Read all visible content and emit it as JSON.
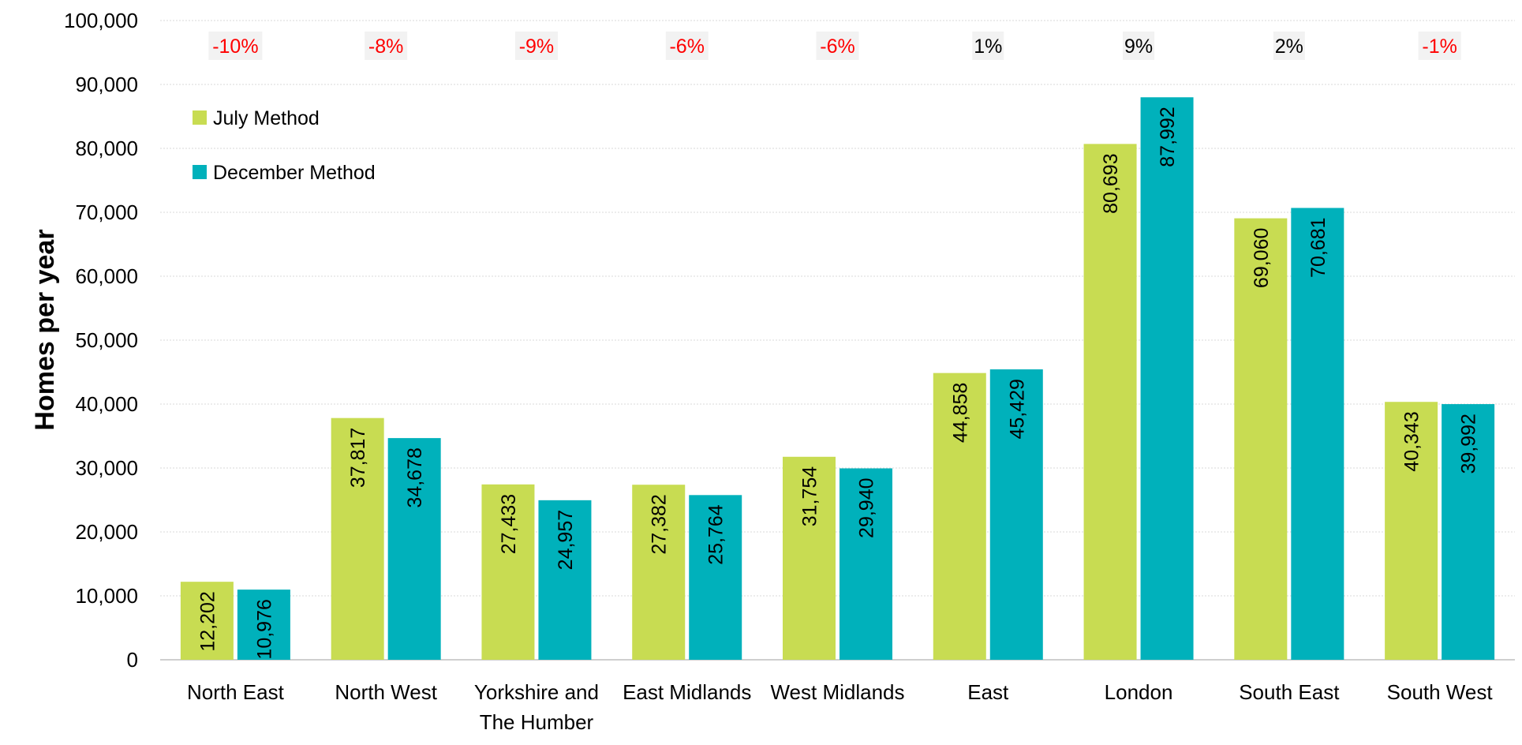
{
  "chart_data": {
    "type": "bar",
    "ylabel": "Homes per year",
    "xlabel": "",
    "ylim": [
      0,
      100000
    ],
    "yticks": [
      0,
      10000,
      20000,
      30000,
      40000,
      50000,
      60000,
      70000,
      80000,
      90000,
      100000
    ],
    "ytick_labels": [
      "0",
      "10,000",
      "20,000",
      "30,000",
      "40,000",
      "50,000",
      "60,000",
      "70,000",
      "80,000",
      "90,000",
      "100,000"
    ],
    "grid": true,
    "legend_position": "top-left",
    "categories": [
      [
        "North East"
      ],
      [
        "North West"
      ],
      [
        "Yorkshire and",
        "The Humber"
      ],
      [
        "East Midlands"
      ],
      [
        "West Midlands"
      ],
      [
        "East"
      ],
      [
        "London"
      ],
      [
        "South East"
      ],
      [
        "South West"
      ]
    ],
    "series": [
      {
        "name": "July Method",
        "color": "#c8dc52",
        "values": [
          12202,
          37817,
          27433,
          27382,
          31754,
          44858,
          80693,
          69060,
          40343
        ],
        "labels": [
          "12,202",
          "37,817",
          "27,433",
          "27,382",
          "31,754",
          "44,858",
          "80,693",
          "69,060",
          "40,343"
        ]
      },
      {
        "name": "December Method",
        "color": "#00b1bb",
        "values": [
          10976,
          34678,
          24957,
          25764,
          29940,
          45429,
          87992,
          70681,
          39992
        ],
        "labels": [
          "10,976",
          "34,678",
          "24,957",
          "25,764",
          "29,940",
          "45,429",
          "87,992",
          "70,681",
          "39,992"
        ]
      }
    ],
    "annotations": {
      "change_labels": [
        "-10%",
        "-8%",
        "-9%",
        "-6%",
        "-6%",
        "1%",
        "9%",
        "2%",
        "-1%"
      ],
      "negative_color": "#ff0000",
      "positive_color": "#000000",
      "box_color": "#f2f2f2"
    }
  }
}
